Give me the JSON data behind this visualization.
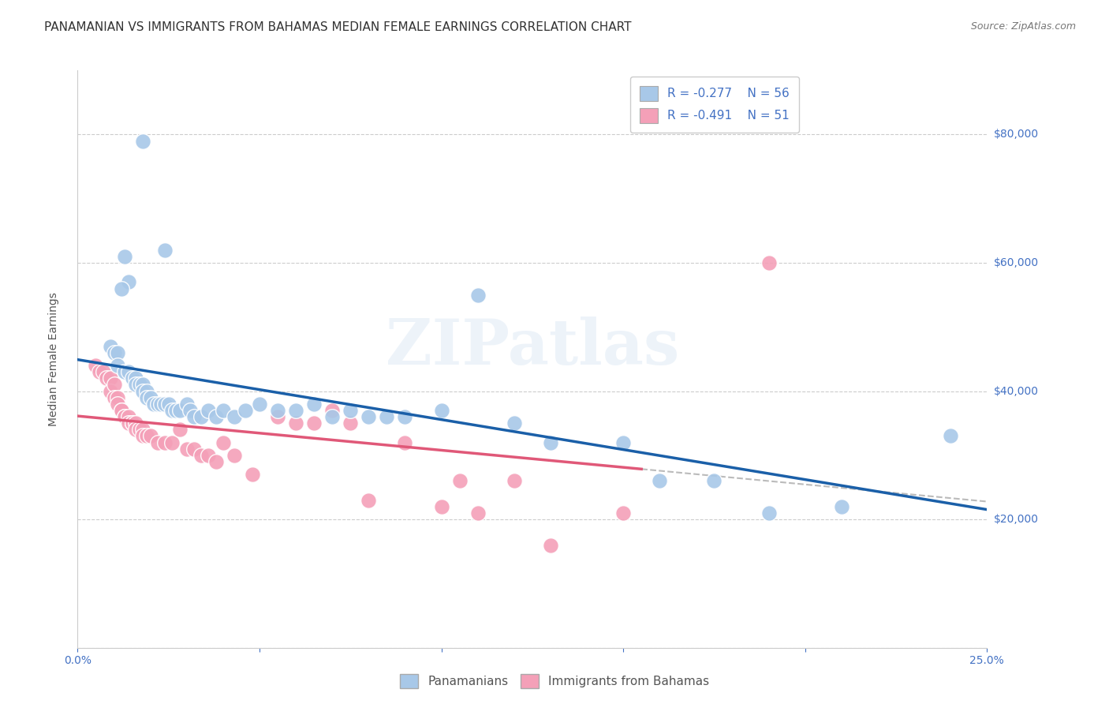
{
  "title": "PANAMANIAN VS IMMIGRANTS FROM BAHAMAS MEDIAN FEMALE EARNINGS CORRELATION CHART",
  "source": "Source: ZipAtlas.com",
  "ylabel": "Median Female Earnings",
  "series1_label": "Panamanians",
  "series2_label": "Immigrants from Bahamas",
  "r1": -0.277,
  "n1": 56,
  "r2": -0.491,
  "n2": 51,
  "blue_color": "#a8c8e8",
  "pink_color": "#f4a0b8",
  "blue_line_color": "#1a5fa8",
  "pink_line_color": "#e05878",
  "tick_color": "#4472c4",
  "ylim": [
    0,
    90000
  ],
  "xlim": [
    0.0,
    0.25
  ],
  "ytick_right_labels": [
    "$80,000",
    "$60,000",
    "$40,000",
    "$20,000"
  ],
  "ytick_right_values": [
    80000,
    60000,
    40000,
    20000
  ],
  "background_color": "#ffffff",
  "grid_color": "#cccccc",
  "watermark": "ZIPatlas",
  "blue_scatter_x": [
    0.018,
    0.024,
    0.013,
    0.014,
    0.012,
    0.009,
    0.01,
    0.011,
    0.011,
    0.013,
    0.014,
    0.015,
    0.016,
    0.016,
    0.017,
    0.018,
    0.018,
    0.019,
    0.019,
    0.02,
    0.021,
    0.022,
    0.023,
    0.024,
    0.025,
    0.026,
    0.027,
    0.028,
    0.03,
    0.031,
    0.032,
    0.034,
    0.036,
    0.038,
    0.04,
    0.043,
    0.046,
    0.05,
    0.055,
    0.06,
    0.065,
    0.07,
    0.075,
    0.08,
    0.085,
    0.09,
    0.1,
    0.11,
    0.12,
    0.13,
    0.15,
    0.16,
    0.175,
    0.19,
    0.21,
    0.24
  ],
  "blue_scatter_y": [
    79000,
    62000,
    61000,
    57000,
    56000,
    47000,
    46000,
    46000,
    44000,
    43000,
    43000,
    42000,
    42000,
    41000,
    41000,
    41000,
    40000,
    40000,
    39000,
    39000,
    38000,
    38000,
    38000,
    38000,
    38000,
    37000,
    37000,
    37000,
    38000,
    37000,
    36000,
    36000,
    37000,
    36000,
    37000,
    36000,
    37000,
    38000,
    37000,
    37000,
    38000,
    36000,
    37000,
    36000,
    36000,
    36000,
    37000,
    55000,
    35000,
    32000,
    32000,
    26000,
    26000,
    21000,
    22000,
    33000
  ],
  "pink_scatter_x": [
    0.005,
    0.006,
    0.007,
    0.008,
    0.009,
    0.009,
    0.01,
    0.01,
    0.011,
    0.011,
    0.012,
    0.012,
    0.013,
    0.013,
    0.014,
    0.014,
    0.015,
    0.015,
    0.016,
    0.016,
    0.017,
    0.018,
    0.018,
    0.019,
    0.02,
    0.022,
    0.024,
    0.026,
    0.028,
    0.03,
    0.032,
    0.034,
    0.036,
    0.038,
    0.04,
    0.043,
    0.048,
    0.055,
    0.06,
    0.065,
    0.07,
    0.075,
    0.08,
    0.09,
    0.1,
    0.105,
    0.11,
    0.12,
    0.13,
    0.15,
    0.19
  ],
  "pink_scatter_y": [
    44000,
    43000,
    43000,
    42000,
    42000,
    40000,
    41000,
    39000,
    39000,
    38000,
    37000,
    37000,
    36000,
    36000,
    36000,
    35000,
    35000,
    35000,
    35000,
    34000,
    34000,
    34000,
    33000,
    33000,
    33000,
    32000,
    32000,
    32000,
    34000,
    31000,
    31000,
    30000,
    30000,
    29000,
    32000,
    30000,
    27000,
    36000,
    35000,
    35000,
    37000,
    35000,
    23000,
    32000,
    22000,
    26000,
    21000,
    26000,
    16000,
    21000,
    60000
  ],
  "title_fontsize": 11,
  "source_fontsize": 9,
  "axis_fontsize": 10,
  "tick_fontsize": 10,
  "legend_fontsize": 10
}
